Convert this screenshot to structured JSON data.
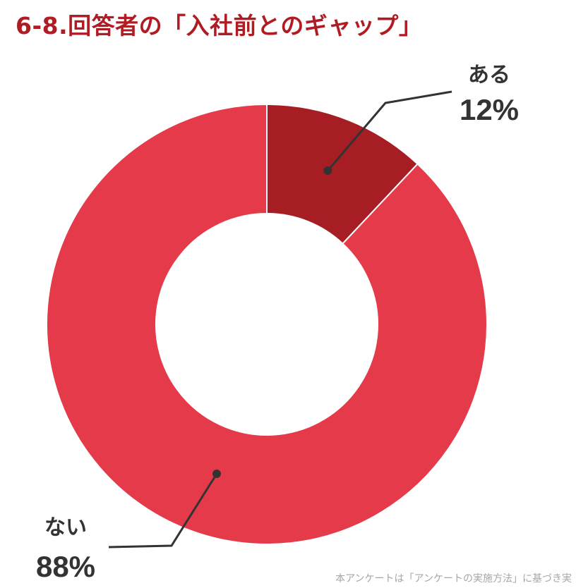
{
  "title": "6-8.回答者の「入社前とのギャップ」",
  "footnote": "本アンケートは「アンケートの実施方法」に基づき実",
  "colors": {
    "title": "#b01c24",
    "label": "#333333",
    "leader": "#333333",
    "slice_aru": "#a61e24",
    "slice_nai": "#e53a4a"
  },
  "chart_data": {
    "type": "pie",
    "donut": true,
    "categories": [
      "ある",
      "ない"
    ],
    "values": [
      12,
      88
    ],
    "labels": [
      "12%",
      "88%"
    ]
  }
}
